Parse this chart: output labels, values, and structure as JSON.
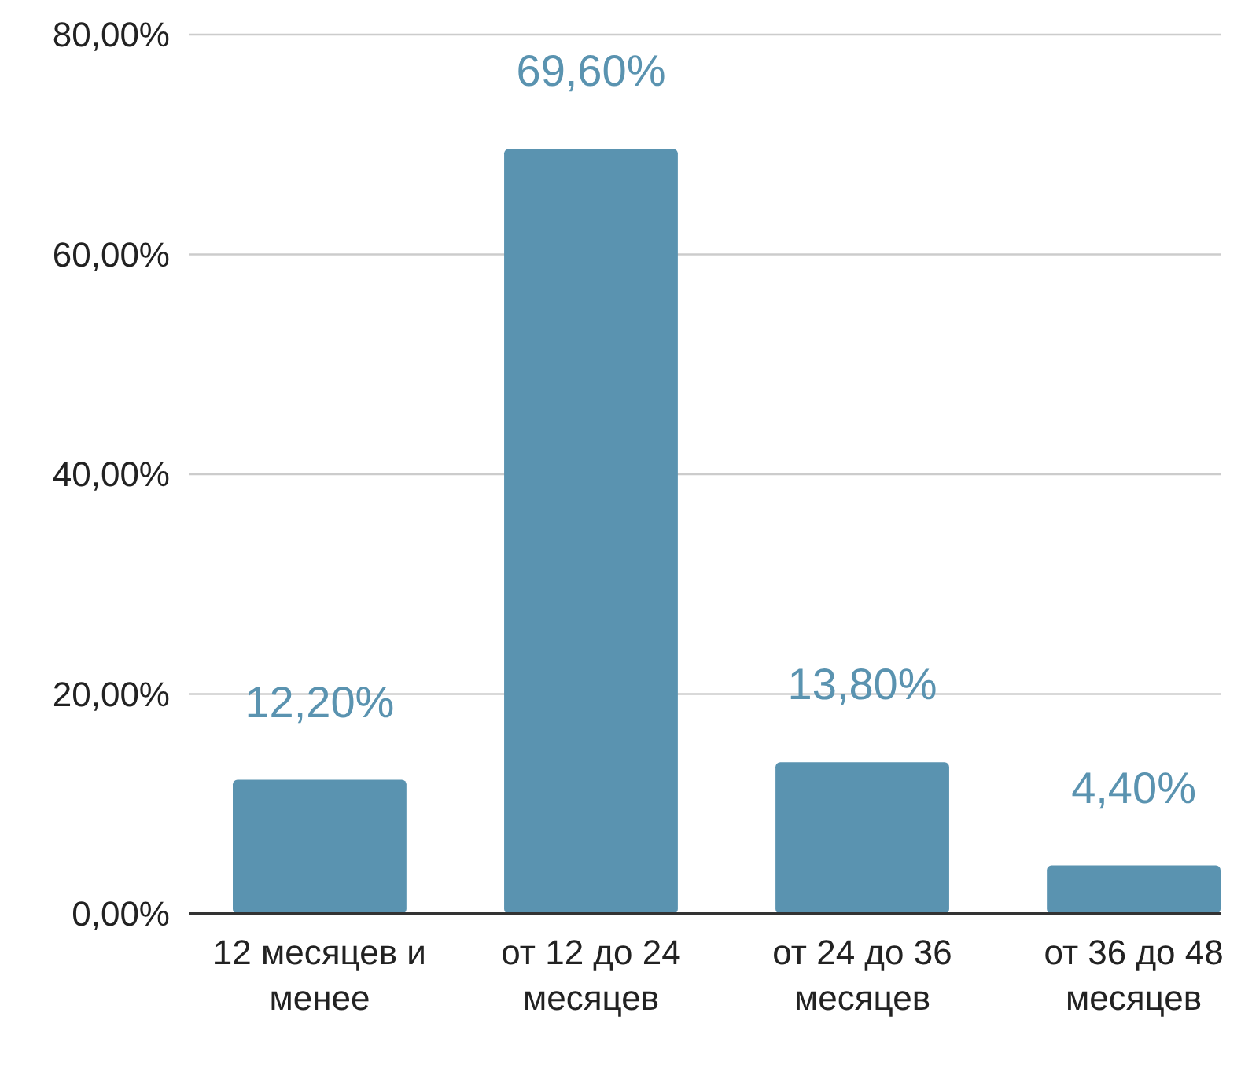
{
  "chart_data": {
    "type": "bar",
    "categories": [
      "12 месяцев и менее",
      "от 12 до 24 месяцев",
      "от 24 до 36 месяцев",
      "от 36 до 48 месяцев"
    ],
    "values": [
      12.2,
      69.6,
      13.8,
      4.4
    ],
    "color": "#5a93b0",
    "value_labels": [
      "12,20%",
      "69,60%",
      "13,80%",
      "4,40%"
    ],
    "ylim": [
      0,
      80
    ],
    "yticks": [
      {
        "value": 0,
        "label": "0,00%"
      },
      {
        "value": 20,
        "label": "20,00%"
      },
      {
        "value": 40,
        "label": "40,00%"
      },
      {
        "value": 60,
        "label": "60,00%"
      },
      {
        "value": 80,
        "label": "80,00%"
      }
    ],
    "grid": true
  }
}
